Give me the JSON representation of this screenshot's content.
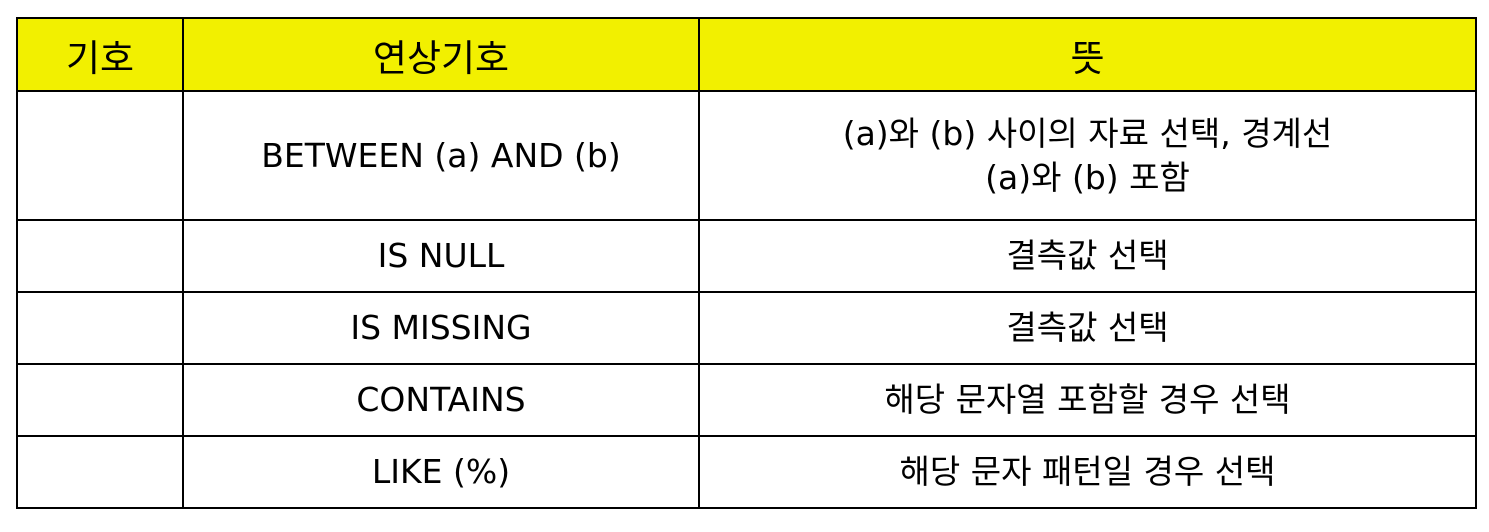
{
  "header": {
    "symbol": "기호",
    "operator": "연상기호",
    "meaning": "뜻"
  },
  "rows": [
    {
      "symbol": "",
      "operator": "BETWEEN (a) AND (b)",
      "meaning_lines": [
        "(a)와 (b) 사이의 자료 선택, 경계선",
        "(a)와 (b) 포함"
      ]
    },
    {
      "symbol": "",
      "operator": "IS NULL",
      "meaning_lines": [
        "결측값 선택"
      ]
    },
    {
      "symbol": "",
      "operator": "IS MISSING",
      "meaning_lines": [
        "결측값 선택"
      ]
    },
    {
      "symbol": "",
      "operator": "CONTAINS",
      "meaning_lines": [
        "해당 문자열 포함할 경우 선택"
      ]
    },
    {
      "symbol": "",
      "operator": "LIKE (%)",
      "meaning_lines": [
        "해당 문자 패턴일 경우 선택"
      ]
    }
  ],
  "colors": {
    "header_background": "#f2f000",
    "border": "#000000"
  }
}
